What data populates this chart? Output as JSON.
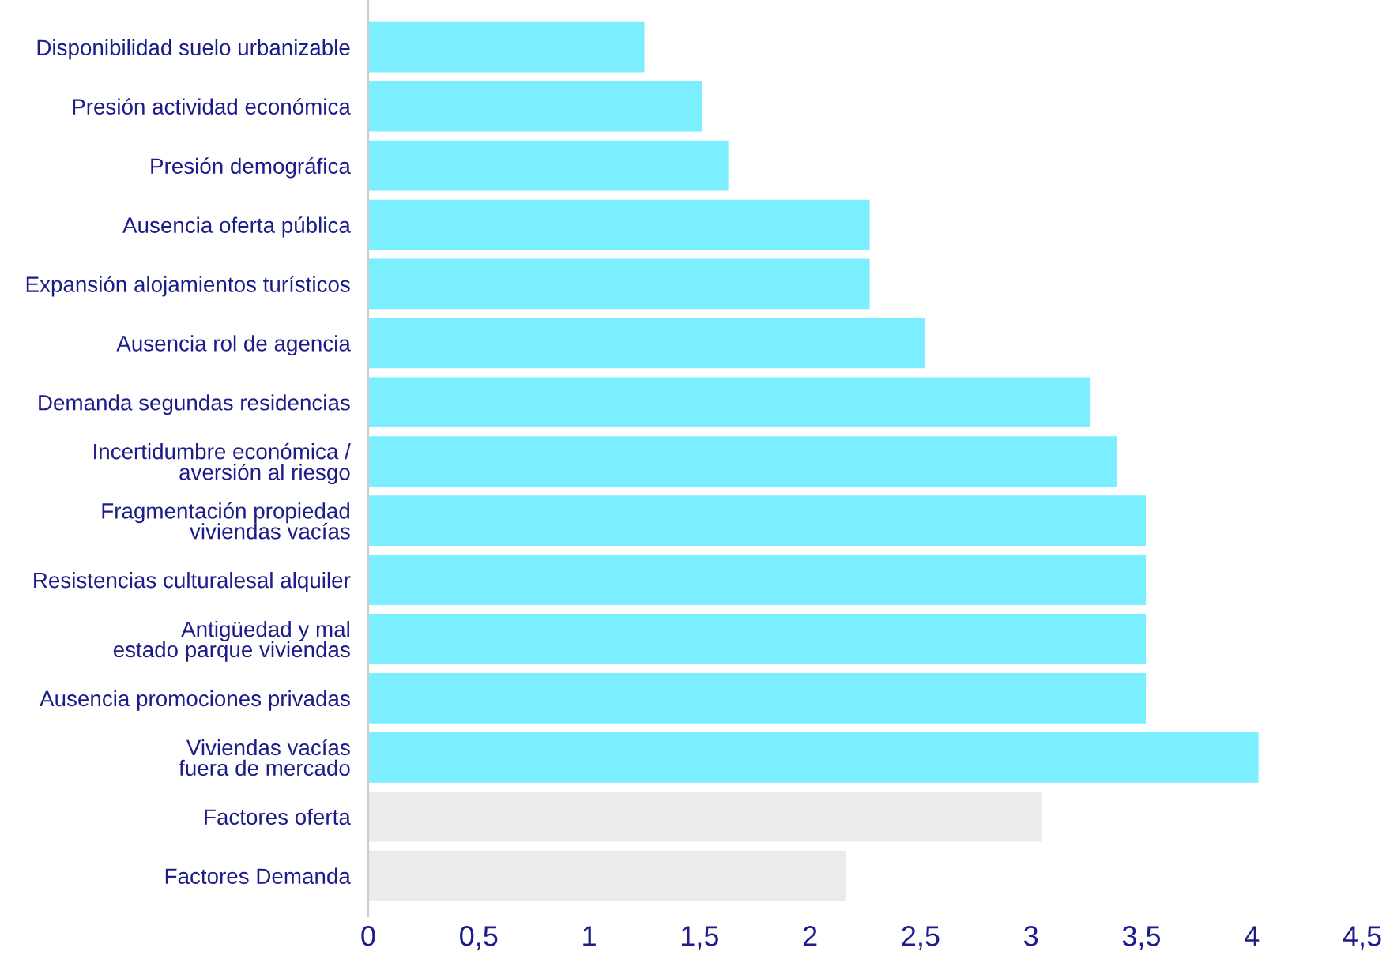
{
  "chart_data": {
    "type": "bar",
    "orientation": "horizontal",
    "categories": [
      "Disponibilidad suelo urbanizable",
      "Presión actividad económica",
      "Presión demográfica",
      "Ausencia oferta pública",
      "Expansión alojamientos turísticos",
      "Ausencia rol de agencia",
      "Demanda segundas residencias",
      "Incertidumbre económica /\naversión al riesgo",
      "Fragmentación propiedad\nviviendas vacías",
      "Resistencias culturalesal alquiler",
      "Antigüedad y mal\nestado parque viviendas",
      "Ausencia promociones privadas",
      "Viviendas vacías\nfuera de mercado",
      "Factores oferta",
      "Factores Demanda"
    ],
    "values": [
      1.25,
      1.51,
      1.63,
      2.27,
      2.27,
      2.52,
      3.27,
      3.39,
      3.52,
      3.52,
      3.52,
      3.52,
      4.03,
      3.05,
      2.16
    ],
    "colors": [
      "#7befff",
      "#7befff",
      "#7befff",
      "#7befff",
      "#7befff",
      "#7befff",
      "#7befff",
      "#7befff",
      "#7befff",
      "#7befff",
      "#7befff",
      "#7befff",
      "#7befff",
      "#ebebeb",
      "#ebebeb"
    ],
    "xlim": [
      0,
      4.5
    ],
    "xticks": [
      0,
      {
        "value": 0.5,
        "label": "0,5"
      },
      1,
      {
        "value": 1.5,
        "label": "1,5"
      },
      2,
      {
        "value": 2.5,
        "label": "2,5"
      },
      3,
      {
        "value": 3.5,
        "label": "3,5"
      },
      4,
      {
        "value": 4.5,
        "label": "4,5"
      }
    ],
    "grid": false,
    "legend": false
  }
}
